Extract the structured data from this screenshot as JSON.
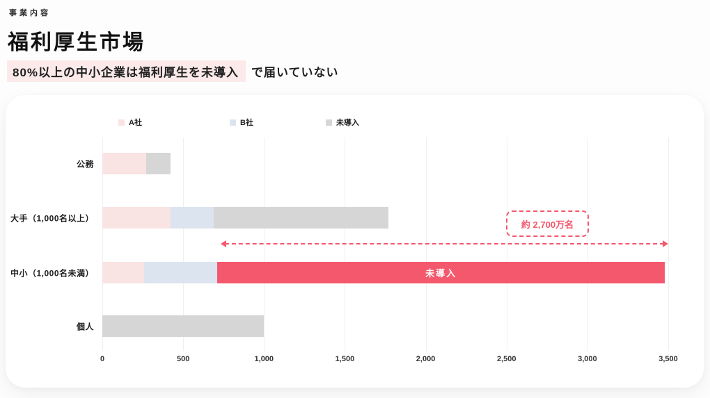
{
  "page": {
    "eyebrow": "事業内容",
    "title": "福利厚生市場",
    "subtitle_highlight": "80%以上の中小企業は福利厚生を未導入",
    "subtitle_rest": "で届いていない"
  },
  "colors": {
    "subtitle_highlight_bg": "#FCEAEA",
    "accent_red": "#F4586C",
    "series_a": "#FAE3E3",
    "series_b": "#DBE4EF",
    "series_gray": "#D6D6D6"
  },
  "chart_data": {
    "type": "bar",
    "orientation": "horizontal",
    "title": "",
    "categories": [
      "公務",
      "大手（1,000名以上）",
      "中小（1,000名未満）",
      "個人"
    ],
    "series": [
      {
        "name": "A社",
        "color": "#FAE3E3",
        "values": [
          270,
          420,
          260,
          0
        ]
      },
      {
        "name": "B社",
        "color": "#DBE4EF",
        "values": [
          0,
          270,
          450,
          0
        ]
      },
      {
        "name": "未導入",
        "color": "#D6D6D6",
        "values": [
          150,
          1080,
          2770,
          1000
        ]
      }
    ],
    "highlight": {
      "category": "中小（1,000名未満）",
      "series": "未導入",
      "color": "#F4586C",
      "label": "未導入",
      "label_color": "#FFFFFF"
    },
    "x_ticks": [
      "0",
      "500",
      "1,000",
      "1,500",
      "2,000",
      "2,500",
      "3,000",
      "3,500"
    ],
    "x_tick_values": [
      0,
      500,
      1000,
      1500,
      2000,
      2500,
      3000,
      3500
    ],
    "xlim": [
      0,
      3500
    ],
    "grid": true,
    "legend_position": "top",
    "annotation": {
      "text": "約 2,700万名",
      "arrow_from": 730,
      "arrow_to": 3500
    }
  }
}
